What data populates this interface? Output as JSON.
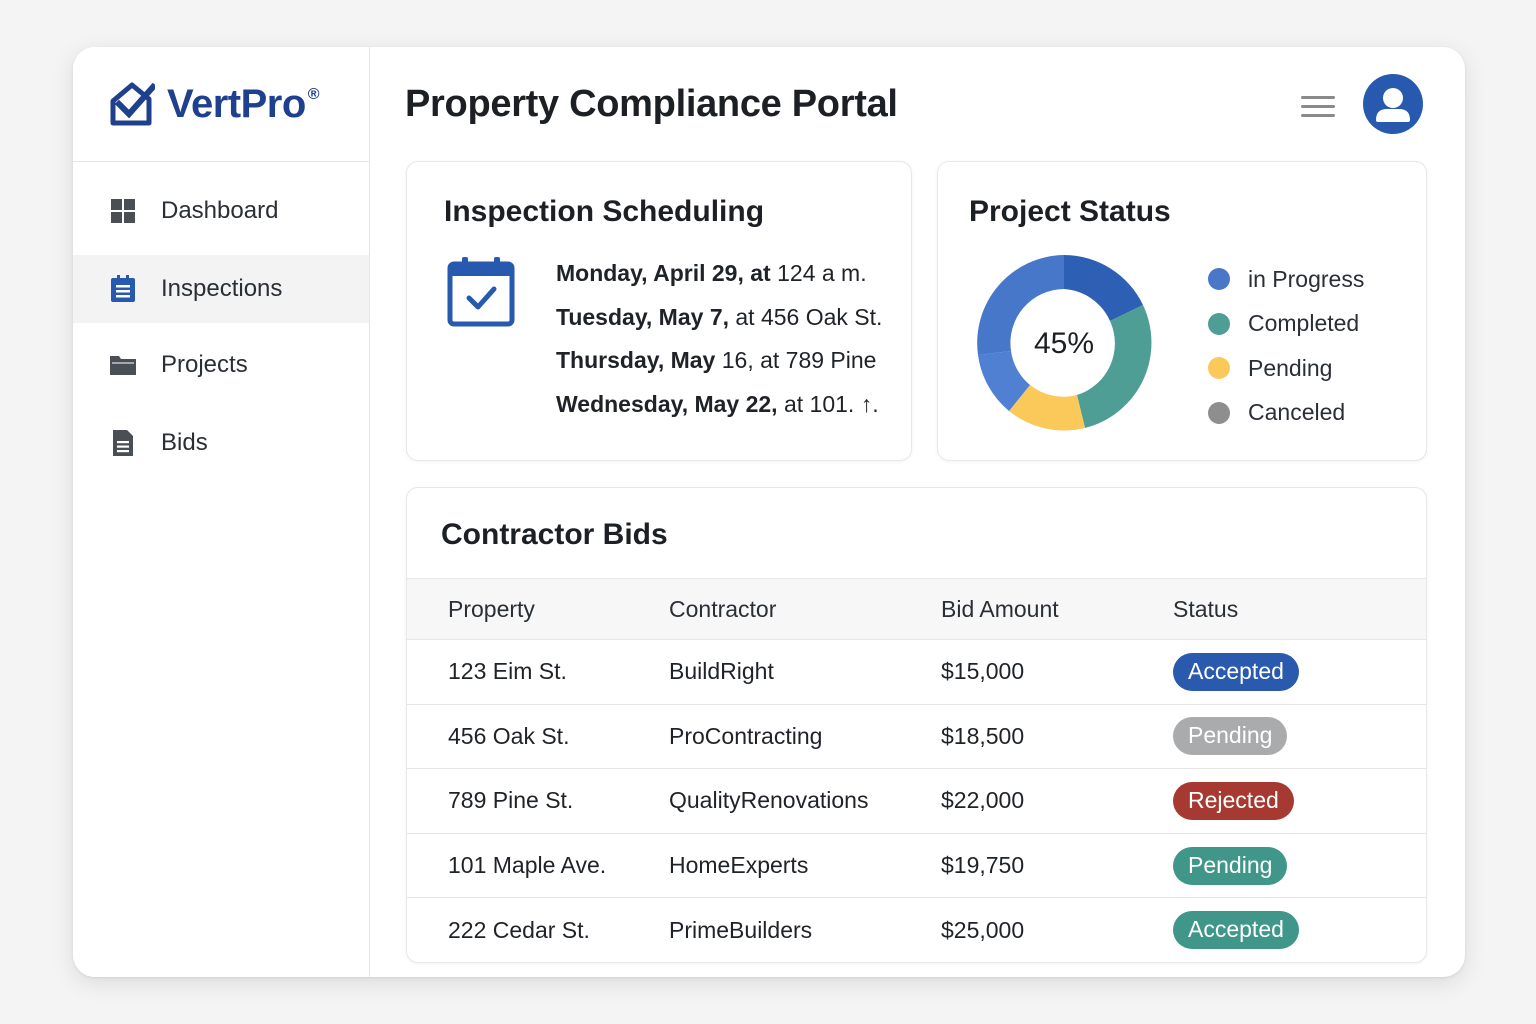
{
  "brand": {
    "name": "VertPro",
    "reg_mark": "®",
    "color": "#1f3f8f"
  },
  "header": {
    "title": "Property Compliance Portal",
    "menu_icon": "hamburger-menu-icon",
    "avatar_icon": "user-avatar-icon"
  },
  "sidebar": {
    "items": [
      {
        "label": "Dashboard",
        "icon": "dashboard-grid-icon",
        "active": false
      },
      {
        "label": "Inspections",
        "icon": "clipboard-list-icon",
        "active": true
      },
      {
        "label": "Projects",
        "icon": "folder-icon",
        "active": false
      },
      {
        "label": "Bids",
        "icon": "document-icon",
        "active": false
      }
    ]
  },
  "inspection": {
    "title": "Inspection Scheduling",
    "icon": "calendar-check-icon",
    "items": [
      {
        "day": "Monday, April 29, at",
        "rest": " 124 a m."
      },
      {
        "day": "Tuesday, May 7,",
        "rest": " at 456 Oak St."
      },
      {
        "day": "Thursday, May",
        "rest": " 16, at 789 Pine"
      },
      {
        "day": "Wednesday, May 22,",
        "rest": " at 101. ↑."
      }
    ]
  },
  "status": {
    "title": "Project Status",
    "center_label": "45%",
    "legend": [
      {
        "label": "in Progress",
        "color": "#4a78c8"
      },
      {
        "label": "Completed",
        "color": "#4f9e95"
      },
      {
        "label": "Pending",
        "color": "#fbc95a"
      },
      {
        "label": "Canceled",
        "color": "#8e8e8e"
      }
    ]
  },
  "bids": {
    "title": "Contractor Bids",
    "columns": [
      "Property",
      "Contractor",
      "Bid Amount",
      "Status"
    ],
    "rows": [
      {
        "property": "123 Eim St.",
        "contractor": "BuildRight",
        "amount": "$15,000",
        "status": "Accepted",
        "status_color": "#2a5aad"
      },
      {
        "property": "456 Oak St.",
        "contractor": "ProContracting",
        "amount": "$18,500",
        "status": "Pending",
        "status_color": "#a9abad"
      },
      {
        "property": "789 Pine St.",
        "contractor": "QualityRenovations",
        "amount": "$22,000",
        "status": "Rejected",
        "status_color": "#a63a32"
      },
      {
        "property": "101 Maple Ave.",
        "contractor": "HomeExperts",
        "amount": "$19,750",
        "status": "Pending",
        "status_color": "#3f9689"
      },
      {
        "property": "222 Cedar St.",
        "contractor": "PrimeBuilders",
        "amount": "$25,000",
        "status": "Accepted",
        "status_color": "#3f9689"
      }
    ]
  }
}
